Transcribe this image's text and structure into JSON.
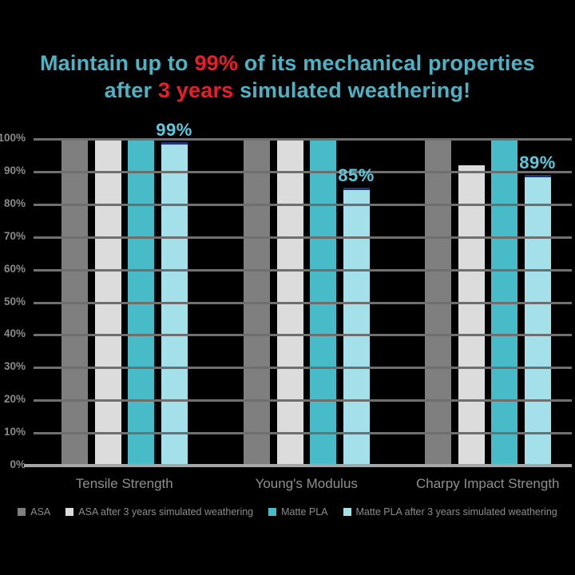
{
  "title": {
    "lines": [
      {
        "segments": [
          {
            "text": "Maintain up to ",
            "style": "teal"
          },
          {
            "text": "99%",
            "style": "red"
          },
          {
            "text": " of its mechanical properties",
            "style": "teal"
          }
        ]
      },
      {
        "segments": [
          {
            "text": "after ",
            "style": "teal"
          },
          {
            "text": "3 years",
            "style": "red"
          },
          {
            "text": " simulated weathering!",
            "style": "teal"
          }
        ]
      }
    ],
    "colors": {
      "teal": "#4db2c4",
      "red": "#ed1c2a"
    }
  },
  "chart_data": {
    "type": "bar",
    "title": "Maintain up to 99% of its mechanical properties after 3 years simulated weathering!",
    "categories": [
      "Tensile Strength",
      "Young's Modulus",
      "Charpy Impact Strength"
    ],
    "series": [
      {
        "name": "ASA",
        "color": "#7f7f7f",
        "values": [
          100,
          100,
          100
        ]
      },
      {
        "name": "ASA after 3 years simulated weathering",
        "color": "#dcdcdc",
        "values": [
          100,
          100,
          92
        ]
      },
      {
        "name": "Matte PLA",
        "color": "#47bcc8",
        "values": [
          100,
          100,
          100
        ]
      },
      {
        "name": "Matte PLA after 3 years simulated weathering",
        "color": "#a3e0ea",
        "top_border_color": "#20337f",
        "values": [
          99,
          85,
          89
        ],
        "data_labels": [
          "99%",
          "85%",
          "89%"
        ]
      }
    ],
    "xlabel": "",
    "ylabel": "",
    "ylim": [
      0,
      100
    ],
    "yticks": [
      "100%",
      "90%",
      "80%",
      "70%",
      "60%",
      "50%",
      "40%",
      "30%",
      "20%",
      "10%",
      "0%"
    ],
    "grid": true,
    "legend_position": "bottom",
    "colors": {
      "background": "#000000",
      "gridline": "#6f6f6f",
      "axisline": "#a6a6a6",
      "ytick_text": "#8a8a8a",
      "category_text": "#8f8f8f",
      "legend_text": "#8c8c8c",
      "data_label": "#5cc9dd"
    }
  }
}
